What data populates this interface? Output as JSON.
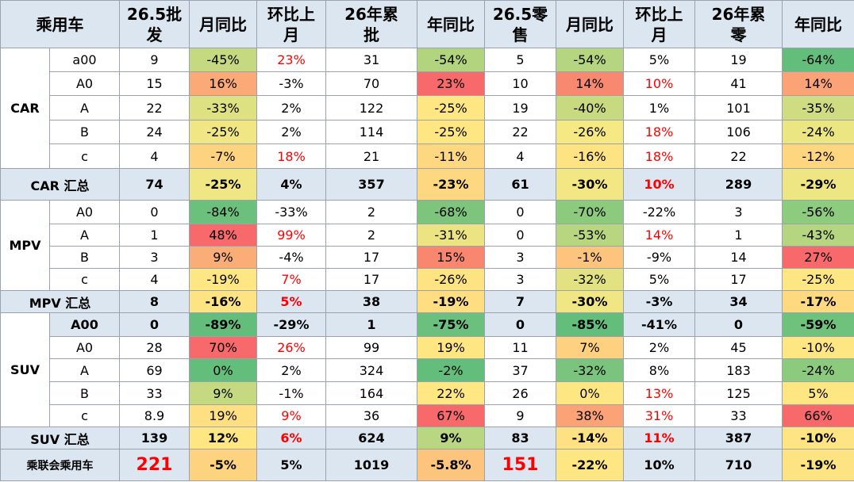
{
  "table": {
    "header": {
      "fill": "#dce6f1",
      "cells": [
        {
          "text": "乘用车"
        },
        {
          "text": "26.5批发"
        },
        {
          "text": "月同比"
        },
        {
          "text": "环比上月"
        },
        {
          "text": "26年累批"
        },
        {
          "text": "年同比"
        },
        {
          "text": "26.5零售"
        },
        {
          "text": "月同比"
        },
        {
          "text": "环比上月"
        },
        {
          "text": "26年累零"
        },
        {
          "text": "年同比"
        }
      ]
    },
    "sections": [
      {
        "label": "CAR",
        "rows": [
          {
            "cells": [
              {
                "text": "a00"
              },
              {
                "text": "9"
              },
              {
                "text": "-45%",
                "fill": "#c5d980"
              },
              {
                "text": "23%",
                "color": "#ff0000"
              },
              {
                "text": "31"
              },
              {
                "text": "-54%",
                "fill": "#b2d47f"
              },
              {
                "text": "5"
              },
              {
                "text": "-54%",
                "fill": "#b5d580"
              },
              {
                "text": "5%"
              },
              {
                "text": "19"
              },
              {
                "text": "-64%",
                "fill": "#63be7b"
              }
            ]
          },
          {
            "cells": [
              {
                "text": "A0"
              },
              {
                "text": "15"
              },
              {
                "text": "16%",
                "fill": "#fbaa77"
              },
              {
                "text": "-3%"
              },
              {
                "text": "70"
              },
              {
                "text": "23%",
                "fill": "#f8696b"
              },
              {
                "text": "10"
              },
              {
                "text": "14%",
                "fill": "#f98870"
              },
              {
                "text": "10%",
                "color": "#ff0000"
              },
              {
                "text": "41"
              },
              {
                "text": "14%",
                "fill": "#fba276"
              }
            ]
          },
          {
            "cells": [
              {
                "text": "A"
              },
              {
                "text": "22"
              },
              {
                "text": "-33%",
                "fill": "#dde181"
              },
              {
                "text": "2%"
              },
              {
                "text": "122"
              },
              {
                "text": "-25%",
                "fill": "#fee783"
              },
              {
                "text": "19"
              },
              {
                "text": "-40%",
                "fill": "#c8da80"
              },
              {
                "text": "1%"
              },
              {
                "text": "101"
              },
              {
                "text": "-35%",
                "fill": "#d0dc81"
              }
            ]
          },
          {
            "cells": [
              {
                "text": "B"
              },
              {
                "text": "24"
              },
              {
                "text": "-25%",
                "fill": "#f0e683"
              },
              {
                "text": "2%"
              },
              {
                "text": "114"
              },
              {
                "text": "-25%",
                "fill": "#fee783"
              },
              {
                "text": "22"
              },
              {
                "text": "-26%",
                "fill": "#f6e883"
              },
              {
                "text": "18%",
                "color": "#ff0000"
              },
              {
                "text": "106"
              },
              {
                "text": "-24%",
                "fill": "#ebe582"
              }
            ]
          },
          {
            "cells": [
              {
                "text": "c"
              },
              {
                "text": "4"
              },
              {
                "text": "-7%",
                "fill": "#fdd37f"
              },
              {
                "text": "18%",
                "color": "#ff0000"
              },
              {
                "text": "21"
              },
              {
                "text": "-11%",
                "fill": "#fed880"
              },
              {
                "text": "4"
              },
              {
                "text": "-16%",
                "fill": "#fee382"
              },
              {
                "text": "18%",
                "color": "#ff0000"
              },
              {
                "text": "22"
              },
              {
                "text": "-12%",
                "fill": "#fed680"
              }
            ]
          }
        ],
        "summary": {
          "fill": "#dce6f1",
          "cells": [
            {
              "text": "CAR 汇总"
            },
            {
              "text": "74"
            },
            {
              "text": "-25%",
              "fill": "#f0e683"
            },
            {
              "text": "4%"
            },
            {
              "text": "357"
            },
            {
              "text": "-23%",
              "fill": "#fed880"
            },
            {
              "text": "61"
            },
            {
              "text": "-30%",
              "fill": "#f2e783"
            },
            {
              "text": "10%",
              "color": "#ff0000"
            },
            {
              "text": "289"
            },
            {
              "text": "-29%",
              "fill": "#eee583"
            }
          ]
        }
      },
      {
        "label": "MPV",
        "rows": [
          {
            "cells": [
              {
                "text": "A0"
              },
              {
                "text": "0"
              },
              {
                "text": "-84%",
                "fill": "#6bc07c"
              },
              {
                "text": "-33%"
              },
              {
                "text": "2"
              },
              {
                "text": "-68%",
                "fill": "#7dc57d"
              },
              {
                "text": "0"
              },
              {
                "text": "-70%",
                "fill": "#8ccb7e"
              },
              {
                "text": "-22%"
              },
              {
                "text": "3"
              },
              {
                "text": "-56%",
                "fill": "#8dcb7e"
              }
            ]
          },
          {
            "cells": [
              {
                "text": "A"
              },
              {
                "text": "1"
              },
              {
                "text": "48%",
                "fill": "#f8696b"
              },
              {
                "text": "99%",
                "color": "#ff0000"
              },
              {
                "text": "2"
              },
              {
                "text": "-31%",
                "fill": "#ece483"
              },
              {
                "text": "0"
              },
              {
                "text": "-53%",
                "fill": "#b8d67f"
              },
              {
                "text": "14%",
                "color": "#ff0000"
              },
              {
                "text": "1"
              },
              {
                "text": "-43%",
                "fill": "#b5d580"
              }
            ]
          },
          {
            "cells": [
              {
                "text": "B"
              },
              {
                "text": "3"
              },
              {
                "text": "9%",
                "fill": "#fbad77"
              },
              {
                "text": "-4%"
              },
              {
                "text": "17"
              },
              {
                "text": "15%",
                "fill": "#f98770"
              },
              {
                "text": "3"
              },
              {
                "text": "-1%",
                "fill": "#fdc47d"
              },
              {
                "text": "-9%"
              },
              {
                "text": "14"
              },
              {
                "text": "27%",
                "fill": "#f8696b"
              }
            ]
          },
          {
            "cells": [
              {
                "text": "c"
              },
              {
                "text": "4"
              },
              {
                "text": "-19%",
                "fill": "#fee783"
              },
              {
                "text": "7%",
                "color": "#ff0000"
              },
              {
                "text": "17"
              },
              {
                "text": "-26%",
                "fill": "#fee382"
              },
              {
                "text": "3"
              },
              {
                "text": "-32%",
                "fill": "#e3e282"
              },
              {
                "text": "5%"
              },
              {
                "text": "17"
              },
              {
                "text": "-25%",
                "fill": "#fee683"
              }
            ]
          }
        ],
        "summary": {
          "fill": "#dce6f1",
          "cells": [
            {
              "text": "MPV 汇总"
            },
            {
              "text": "8"
            },
            {
              "text": "-16%",
              "fill": "#fee382"
            },
            {
              "text": "5%",
              "color": "#ff0000"
            },
            {
              "text": "38"
            },
            {
              "text": "-19%",
              "fill": "#fede81"
            },
            {
              "text": "7"
            },
            {
              "text": "-30%",
              "fill": "#f0e683"
            },
            {
              "text": "-3%"
            },
            {
              "text": "34"
            },
            {
              "text": "-17%",
              "fill": "#fed980"
            }
          ]
        }
      },
      {
        "label": "SUV",
        "rows": [
          {
            "bold": true,
            "fill": "#dce6f1",
            "cells": [
              {
                "text": "A00"
              },
              {
                "text": "0"
              },
              {
                "text": "-89%",
                "fill": "#63be7b"
              },
              {
                "text": "-29%"
              },
              {
                "text": "1"
              },
              {
                "text": "-75%",
                "fill": "#6ac07c"
              },
              {
                "text": "0"
              },
              {
                "text": "-85%",
                "fill": "#63be7b"
              },
              {
                "text": "-41%"
              },
              {
                "text": "0"
              },
              {
                "text": "-59%",
                "fill": "#6fc27c"
              }
            ]
          },
          {
            "cells": [
              {
                "text": "A0"
              },
              {
                "text": "28"
              },
              {
                "text": "70%",
                "fill": "#f8696b"
              },
              {
                "text": "26%",
                "color": "#ff0000"
              },
              {
                "text": "99"
              },
              {
                "text": "19%",
                "fill": "#fee783"
              },
              {
                "text": "11"
              },
              {
                "text": "7%",
                "fill": "#fdd17f"
              },
              {
                "text": "2%"
              },
              {
                "text": "45"
              },
              {
                "text": "-10%",
                "fill": "#fee683"
              }
            ]
          },
          {
            "cells": [
              {
                "text": "A"
              },
              {
                "text": "69"
              },
              {
                "text": "0%",
                "fill": "#63be7b"
              },
              {
                "text": "2%"
              },
              {
                "text": "324"
              },
              {
                "text": "-2%",
                "fill": "#63be7b"
              },
              {
                "text": "37"
              },
              {
                "text": "-32%",
                "fill": "#7ac47d"
              },
              {
                "text": "8%"
              },
              {
                "text": "183"
              },
              {
                "text": "-24%",
                "fill": "#8ccb7e"
              }
            ]
          },
          {
            "cells": [
              {
                "text": "B"
              },
              {
                "text": "33"
              },
              {
                "text": "9%",
                "fill": "#c5d980"
              },
              {
                "text": "-1%"
              },
              {
                "text": "164"
              },
              {
                "text": "22%",
                "fill": "#ffe883"
              },
              {
                "text": "26"
              },
              {
                "text": "0%",
                "fill": "#fee783"
              },
              {
                "text": "13%",
                "color": "#ff0000"
              },
              {
                "text": "125"
              },
              {
                "text": "5%",
                "fill": "#fee683"
              }
            ]
          },
          {
            "cells": [
              {
                "text": "c"
              },
              {
                "text": "8.9"
              },
              {
                "text": "19%",
                "fill": "#fee082"
              },
              {
                "text": "9%",
                "color": "#ff0000"
              },
              {
                "text": "36"
              },
              {
                "text": "67%",
                "fill": "#f8696b"
              },
              {
                "text": "9"
              },
              {
                "text": "38%",
                "fill": "#fba276"
              },
              {
                "text": "31%",
                "color": "#ff0000"
              },
              {
                "text": "33"
              },
              {
                "text": "66%",
                "fill": "#f8696b"
              }
            ]
          }
        ],
        "summary": {
          "fill": "#dce6f1",
          "cells": [
            {
              "text": "SUV 汇总"
            },
            {
              "text": "139"
            },
            {
              "text": "12%",
              "fill": "#fee683"
            },
            {
              "text": "6%",
              "color": "#ff0000"
            },
            {
              "text": "624"
            },
            {
              "text": "9%",
              "fill": "#b9d680"
            },
            {
              "text": "83"
            },
            {
              "text": "-14%",
              "fill": "#fee182"
            },
            {
              "text": "11%",
              "color": "#ff0000"
            },
            {
              "text": "387"
            },
            {
              "text": "-10%",
              "fill": "#fee482"
            }
          ]
        }
      }
    ],
    "total": {
      "bold": true,
      "fill": "#dce6f1",
      "cells": [
        {
          "text": "乘联会乘用车"
        },
        {
          "text": "221",
          "color": "#ff0000",
          "big": true
        },
        {
          "text": "-5%",
          "fill": "#fdd37f"
        },
        {
          "text": "5%"
        },
        {
          "text": "1019"
        },
        {
          "text": "-5.8%",
          "fill": "#fdc47d"
        },
        {
          "text": "151",
          "color": "#ff0000",
          "big": true
        },
        {
          "text": "-22%",
          "fill": "#fee783"
        },
        {
          "text": "10%"
        },
        {
          "text": "710"
        },
        {
          "text": "-19%",
          "fill": "#fee382"
        }
      ]
    }
  }
}
